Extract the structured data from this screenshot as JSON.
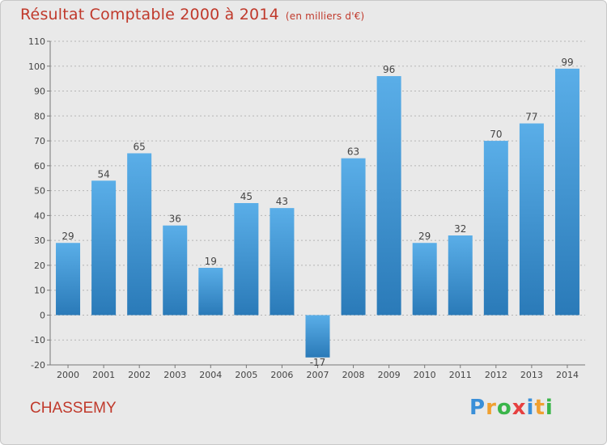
{
  "header": {
    "title": "Résultat Comptable 2000 à 2014",
    "subtitle": "(en milliers d'€)"
  },
  "footer": {
    "commune": "CHASSEMY",
    "logo_letters": [
      "P",
      "r",
      "o",
      "x",
      "i",
      "t",
      "i"
    ],
    "logo_colors": [
      "#3a8fd8",
      "#f0a030",
      "#3ab54a",
      "#e64040",
      "#3a8fd8",
      "#f0a030",
      "#3ab54a"
    ]
  },
  "colors": {
    "bar_top": "#5aaee8",
    "bar_bottom": "#2a7ab8",
    "text": "#444444",
    "title": "#c0392b"
  },
  "chart_data": {
    "type": "bar",
    "title": "Résultat Comptable 2000 à 2014",
    "categories": [
      "2000",
      "2001",
      "2002",
      "2003",
      "2004",
      "2005",
      "2006",
      "2007",
      "2008",
      "2009",
      "2010",
      "2011",
      "2012",
      "2013",
      "2014"
    ],
    "values": [
      29,
      54,
      65,
      36,
      19,
      45,
      43,
      -17,
      63,
      96,
      29,
      32,
      70,
      77,
      99
    ],
    "ylim": [
      -20,
      110
    ],
    "yticks": [
      -20,
      -10,
      0,
      10,
      20,
      30,
      40,
      50,
      60,
      70,
      80,
      90,
      100,
      110
    ],
    "grid": true
  }
}
